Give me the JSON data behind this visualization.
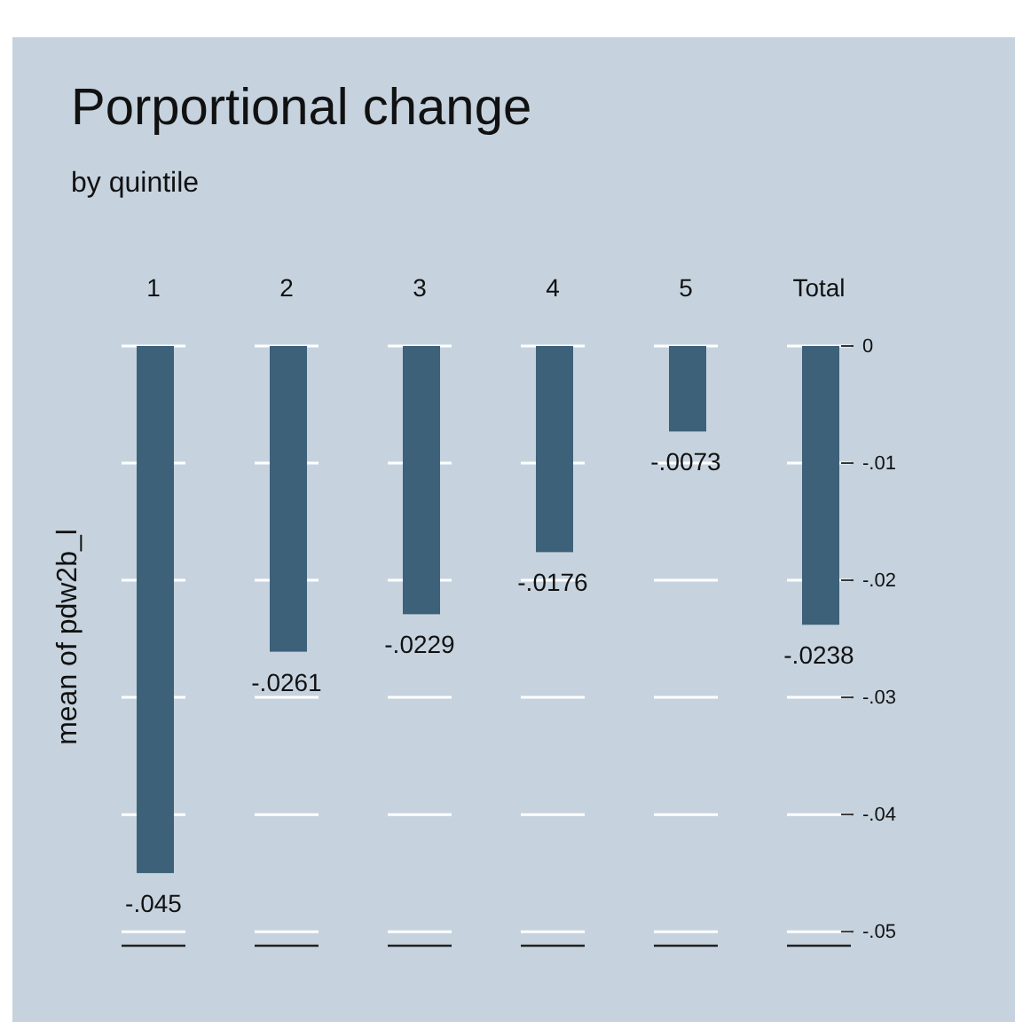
{
  "chart_data": {
    "type": "bar",
    "title": "Porportional change",
    "subtitle": "by quintile",
    "ylabel": "mean of pdw2b_l",
    "categories": [
      "1",
      "2",
      "3",
      "4",
      "5",
      "Total"
    ],
    "values": [
      -0.045,
      -0.0261,
      -0.0229,
      -0.0176,
      -0.0073,
      -0.0238
    ],
    "value_labels": [
      "-.045",
      "-.0261",
      "-.0229",
      "-.0176",
      "-.0073",
      "-.0238"
    ],
    "color": "#3d6179",
    "ylim": [
      -0.0512,
      0
    ],
    "yticks": [
      0,
      {
        "value": -0.01,
        "label": "-.01"
      },
      {
        "value": -0.02,
        "label": "-.02"
      },
      {
        "value": -0.03,
        "label": "-.03"
      },
      {
        "value": -0.04,
        "label": "-.04"
      },
      {
        "value": -0.05,
        "label": "-.05"
      }
    ],
    "grid": "y"
  }
}
